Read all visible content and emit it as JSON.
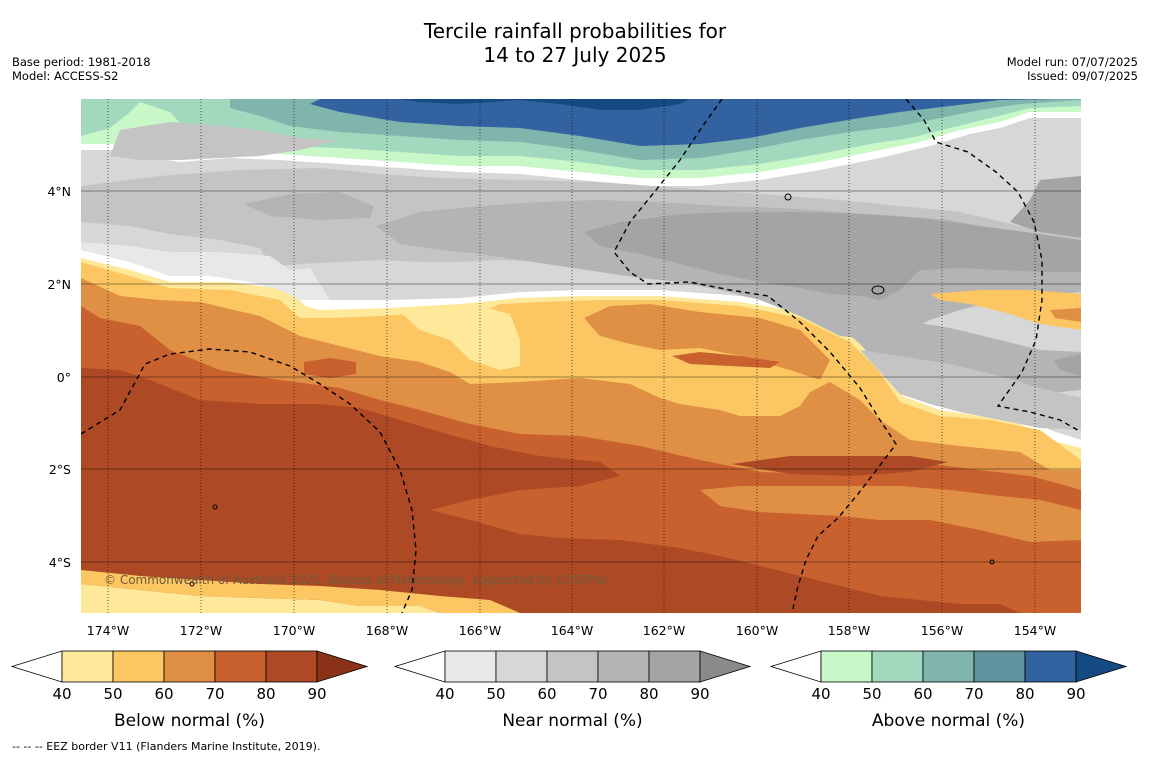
{
  "title": {
    "line1": "Tercile rainfall probabilities for",
    "line2": "14 to 27 July 2025"
  },
  "info_left": {
    "base_period": "Base period: 1981-2018",
    "model": "Model: ACCESS-S2"
  },
  "info_right": {
    "model_run": "Model run: 07/07/2025",
    "issued": "Issued: 09/07/2025"
  },
  "map": {
    "lon_labels": [
      "174°W",
      "172°W",
      "170°W",
      "168°W",
      "166°W",
      "164°W",
      "162°W",
      "160°W",
      "158°W",
      "156°W",
      "154°W"
    ],
    "lat_labels": [
      "4°N",
      "2°N",
      "0°",
      "2°S",
      "4°S"
    ],
    "copyright": "© Commonwealth of Australia 2025, Bureau of Meteorology, supported by COSPPac"
  },
  "colorbars": [
    {
      "label": "Below normal (%)",
      "ticks": [
        "40",
        "50",
        "60",
        "70",
        "80",
        "90"
      ],
      "colors": [
        "#fee89a",
        "#fcc762",
        "#e09045",
        "#c9612f",
        "#ad4a25",
        "#8c3219"
      ]
    },
    {
      "label": "Near normal (%)",
      "ticks": [
        "40",
        "50",
        "60",
        "70",
        "80",
        "90"
      ],
      "colors": [
        "#e8e8e8",
        "#d7d7d7",
        "#c4c4c4",
        "#b4b4b4",
        "#a4a4a4",
        "#8a8a8a"
      ]
    },
    {
      "label": "Above normal (%)",
      "ticks": [
        "40",
        "50",
        "60",
        "70",
        "80",
        "90"
      ],
      "colors": [
        "#c8f7c8",
        "#a2d8be",
        "#80b5ad",
        "#5f939e",
        "#3262a0",
        "#154a82"
      ]
    }
  ],
  "footnote": "--  --  -- EEZ border V11 (Flanders Marine Institute, 2019)."
}
